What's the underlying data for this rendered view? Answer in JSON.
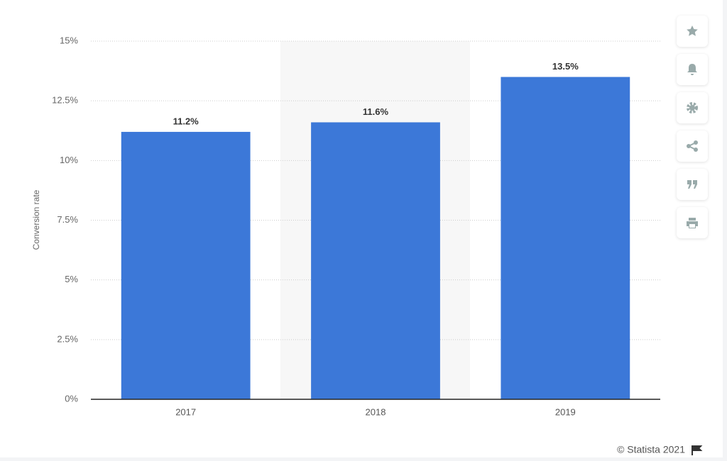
{
  "chart_data": {
    "type": "bar",
    "y_label": "Conversion rate",
    "categories": [
      "2017",
      "2018",
      "2019"
    ],
    "values": [
      11.2,
      11.6,
      13.5
    ],
    "value_labels": [
      "11.2%",
      "11.6%",
      "13.5%"
    ],
    "color": "#3c78d8",
    "ylim": [
      0,
      15
    ],
    "yticks": [
      {
        "value": 0,
        "label": "0%"
      },
      {
        "value": 2.5,
        "label": "2.5%"
      },
      {
        "value": 5,
        "label": "5%"
      },
      {
        "value": 7.5,
        "label": "7.5%"
      },
      {
        "value": 10,
        "label": "10%"
      },
      {
        "value": 12.5,
        "label": "12.5%"
      },
      {
        "value": 15,
        "label": "15%"
      }
    ],
    "grid": true,
    "source": "© Statista 2021"
  }
}
